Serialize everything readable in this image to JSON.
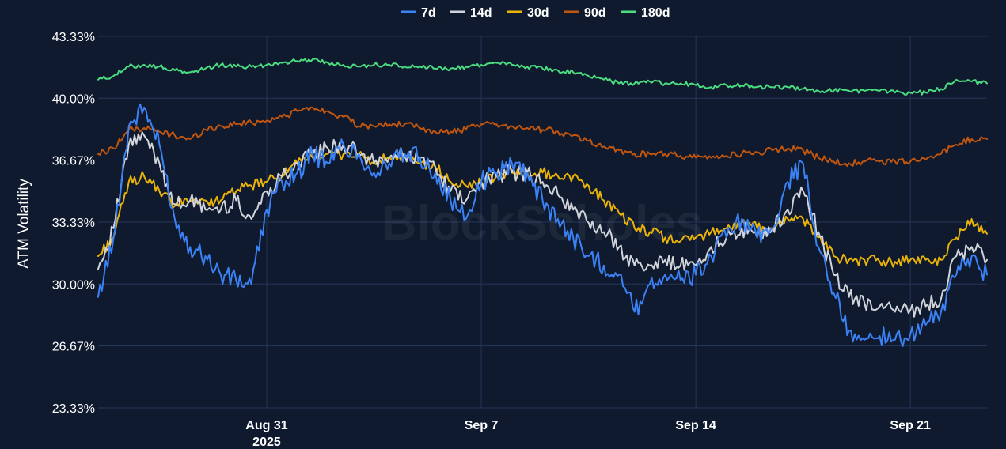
{
  "watermark": "BlockScholes",
  "colors": {
    "background": "#0f1a2e",
    "grid": "#24365a",
    "text": "#ffffff"
  },
  "chart_data": {
    "type": "line",
    "title": "",
    "xlabel": "",
    "ylabel": "ATM Volatility",
    "legend_position": "top",
    "grid": true,
    "x_range": [
      "2025-08-25T12:00",
      "2025-09-23T12:00"
    ],
    "ylim": [
      23.33,
      43.33
    ],
    "y_ticks": [
      23.33,
      26.67,
      30.0,
      33.33,
      36.67,
      40.0,
      43.33
    ],
    "y_tick_labels": [
      "23.33%",
      "26.67%",
      "30.00%",
      "33.33%",
      "36.67%",
      "40.00%",
      "43.33%"
    ],
    "x_ticks": [
      {
        "date": "2025-08-31",
        "label": "Aug 31",
        "sublabel": "2025"
      },
      {
        "date": "2025-09-07",
        "label": "Sep 7",
        "sublabel": ""
      },
      {
        "date": "2025-09-14",
        "label": "Sep 14",
        "sublabel": ""
      },
      {
        "date": "2025-09-21",
        "label": "Sep 21",
        "sublabel": ""
      }
    ],
    "x": [
      "2025-08-25T12:00",
      "2025-08-26T00:00",
      "2025-08-26T12:00",
      "2025-08-27T00:00",
      "2025-08-27T12:00",
      "2025-08-28T00:00",
      "2025-08-28T12:00",
      "2025-08-29T00:00",
      "2025-08-29T12:00",
      "2025-08-30T00:00",
      "2025-08-30T12:00",
      "2025-08-31T00:00",
      "2025-08-31T12:00",
      "2025-09-01T00:00",
      "2025-09-01T12:00",
      "2025-09-02T00:00",
      "2025-09-02T12:00",
      "2025-09-03T00:00",
      "2025-09-03T12:00",
      "2025-09-04T00:00",
      "2025-09-04T12:00",
      "2025-09-05T00:00",
      "2025-09-05T12:00",
      "2025-09-06T00:00",
      "2025-09-06T12:00",
      "2025-09-07T00:00",
      "2025-09-07T12:00",
      "2025-09-08T00:00",
      "2025-09-08T12:00",
      "2025-09-09T00:00",
      "2025-09-09T12:00",
      "2025-09-10T00:00",
      "2025-09-10T12:00",
      "2025-09-11T00:00",
      "2025-09-11T12:00",
      "2025-09-12T00:00",
      "2025-09-12T12:00",
      "2025-09-13T00:00",
      "2025-09-13T12:00",
      "2025-09-14T00:00",
      "2025-09-14T12:00",
      "2025-09-15T00:00",
      "2025-09-15T12:00",
      "2025-09-16T00:00",
      "2025-09-16T12:00",
      "2025-09-17T00:00",
      "2025-09-17T12:00",
      "2025-09-18T00:00",
      "2025-09-18T12:00",
      "2025-09-19T00:00",
      "2025-09-19T12:00",
      "2025-09-20T00:00",
      "2025-09-20T12:00",
      "2025-09-21T00:00",
      "2025-09-21T12:00",
      "2025-09-22T00:00",
      "2025-09-22T12:00",
      "2025-09-23T00:00",
      "2025-09-23T12:00"
    ],
    "series": [
      {
        "name": "7d",
        "color": "#3b82f6",
        "values": [
          29.3,
          32.5,
          38.5,
          39.5,
          37.5,
          33.5,
          32.0,
          31.5,
          30.5,
          30.2,
          30.0,
          34.0,
          35.5,
          36.0,
          37.0,
          36.5,
          37.5,
          37.0,
          36.0,
          36.5,
          37.0,
          36.8,
          36.0,
          34.5,
          33.5,
          35.5,
          36.0,
          36.5,
          36.0,
          34.5,
          33.5,
          32.5,
          31.5,
          31.0,
          30.5,
          28.5,
          30.0,
          30.5,
          30.2,
          30.5,
          31.5,
          32.5,
          33.5,
          32.5,
          33.0,
          35.5,
          36.5,
          32.0,
          29.5,
          27.5,
          27.0,
          27.2,
          27.0,
          27.3,
          27.8,
          28.5,
          30.5,
          31.5,
          30.5
        ]
      },
      {
        "name": "14d",
        "color": "#d1d5db",
        "values": [
          30.8,
          33.0,
          37.5,
          38.0,
          36.5,
          34.3,
          34.5,
          34.0,
          34.0,
          34.5,
          33.5,
          35.0,
          35.8,
          36.5,
          37.0,
          37.3,
          37.5,
          37.0,
          36.5,
          36.8,
          37.0,
          36.8,
          36.3,
          35.0,
          34.5,
          35.5,
          35.8,
          36.0,
          36.0,
          35.5,
          34.8,
          34.0,
          33.3,
          32.8,
          32.0,
          31.0,
          31.0,
          31.3,
          31.0,
          31.0,
          32.0,
          32.5,
          33.0,
          32.5,
          33.0,
          34.0,
          35.0,
          32.8,
          30.5,
          29.3,
          29.0,
          28.8,
          28.5,
          28.6,
          28.8,
          29.2,
          31.5,
          32.0,
          31.3
        ]
      },
      {
        "name": "30d",
        "color": "#eab308",
        "values": [
          31.5,
          32.5,
          35.5,
          35.8,
          35.0,
          34.2,
          34.5,
          34.5,
          34.5,
          35.0,
          35.3,
          35.5,
          35.8,
          36.5,
          36.8,
          37.0,
          37.0,
          37.0,
          36.5,
          36.8,
          36.8,
          36.5,
          36.3,
          35.5,
          35.3,
          35.5,
          35.8,
          36.0,
          36.0,
          36.0,
          35.8,
          35.8,
          35.3,
          34.5,
          33.8,
          33.0,
          32.8,
          32.5,
          32.3,
          32.5,
          32.8,
          33.0,
          33.3,
          33.0,
          33.0,
          33.5,
          33.5,
          32.5,
          31.5,
          31.3,
          31.3,
          31.2,
          31.2,
          31.3,
          31.3,
          31.3,
          32.5,
          33.5,
          32.7
        ]
      },
      {
        "name": "90d",
        "color": "#c2560f",
        "values": [
          37.0,
          37.3,
          38.3,
          38.4,
          38.2,
          38.0,
          37.8,
          38.3,
          38.5,
          38.6,
          38.7,
          38.8,
          39.0,
          39.3,
          39.5,
          39.3,
          39.0,
          38.5,
          38.5,
          38.6,
          38.6,
          38.4,
          38.2,
          38.2,
          38.3,
          38.6,
          38.6,
          38.5,
          38.4,
          38.3,
          38.2,
          38.0,
          37.7,
          37.4,
          37.2,
          37.0,
          37.0,
          37.0,
          36.9,
          36.8,
          36.8,
          36.9,
          37.0,
          37.1,
          37.2,
          37.3,
          37.2,
          36.8,
          36.6,
          36.5,
          36.6,
          36.6,
          36.6,
          36.6,
          36.7,
          37.0,
          37.5,
          37.8,
          37.8
        ]
      },
      {
        "name": "180d",
        "color": "#4ade80",
        "values": [
          41.0,
          41.2,
          41.7,
          41.8,
          41.7,
          41.5,
          41.4,
          41.6,
          41.8,
          41.7,
          41.7,
          41.8,
          41.9,
          42.0,
          42.1,
          41.9,
          41.8,
          41.7,
          41.8,
          41.8,
          41.7,
          41.7,
          41.6,
          41.6,
          41.7,
          41.8,
          41.9,
          41.8,
          41.7,
          41.6,
          41.5,
          41.4,
          41.2,
          41.0,
          40.8,
          40.8,
          40.9,
          40.8,
          40.8,
          40.7,
          40.6,
          40.7,
          40.7,
          40.6,
          40.6,
          40.6,
          40.5,
          40.4,
          40.4,
          40.4,
          40.4,
          40.4,
          40.3,
          40.3,
          40.3,
          40.5,
          41.0,
          40.9,
          40.8
        ]
      }
    ]
  }
}
